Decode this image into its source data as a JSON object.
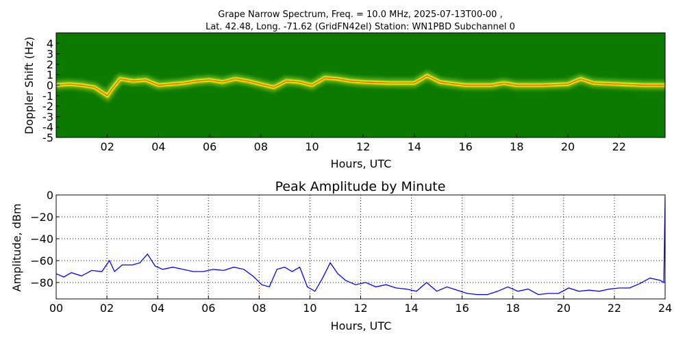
{
  "figure": {
    "title_line1": "Grape Narrow Spectrum, Freq. = 10.0 MHz, 2025-07-13T00-00 ,",
    "title_line2": "Lat.  42.48, Long. -71.62 (GridFN42el) Station: WN1PBD Subchannel 0"
  },
  "chart_data": [
    {
      "type": "heatmap",
      "title": "",
      "xlabel": "Hours, UTC",
      "ylabel": "Doppler Shift (Hz)",
      "xlim": [
        0,
        23.8
      ],
      "ylim": [
        -5,
        5
      ],
      "xticks": [
        2,
        4,
        6,
        8,
        10,
        12,
        14,
        16,
        18,
        20,
        22
      ],
      "xtick_labels": [
        "02",
        "04",
        "06",
        "08",
        "10",
        "12",
        "14",
        "16",
        "18",
        "20",
        "22"
      ],
      "yticks": [
        4,
        3,
        2,
        1,
        0,
        -1,
        -2,
        -3,
        -4,
        -5
      ],
      "ytick_labels": [
        "4",
        "3",
        "2",
        "1",
        "0",
        "-1",
        "-2",
        "-3",
        "-4",
        "-5"
      ],
      "colormap": [
        "#006400",
        "#2e7d0a",
        "#9acd32",
        "#ffff00",
        "#ff3000"
      ],
      "background_color": "#0a7a00",
      "carrier_trace": {
        "hours": [
          0,
          0.5,
          1.0,
          1.5,
          2.0,
          2.2,
          2.5,
          3.0,
          3.5,
          4.0,
          4.5,
          5.0,
          5.5,
          6.0,
          6.5,
          7.0,
          7.5,
          8.0,
          8.5,
          9.0,
          9.5,
          10.0,
          10.5,
          11.0,
          11.5,
          12.0,
          13.0,
          14.0,
          14.5,
          15.0,
          16.0,
          17.0,
          17.5,
          18.0,
          19.0,
          20.0,
          20.5,
          21.0,
          22.0,
          23.0,
          23.8
        ],
        "doppler_hz": [
          0,
          0.1,
          0.0,
          -0.2,
          -1.0,
          -0.3,
          0.6,
          0.4,
          0.5,
          0.0,
          0.1,
          0.2,
          0.4,
          0.5,
          0.3,
          0.6,
          0.4,
          0.1,
          -0.2,
          0.4,
          0.3,
          0.0,
          0.7,
          0.6,
          0.4,
          0.3,
          0.2,
          0.2,
          0.9,
          0.3,
          0.0,
          0.0,
          0.2,
          0.0,
          0.0,
          0.1,
          0.6,
          0.2,
          0.1,
          0.0,
          0.0
        ]
      }
    },
    {
      "type": "line",
      "title": "Peak Amplitude by Minute",
      "xlabel": "Hours, UTC",
      "ylabel": "Amplitude, dBm",
      "xlim": [
        0,
        24
      ],
      "ylim": [
        -95,
        0
      ],
      "grid": true,
      "xticks": [
        0,
        2,
        4,
        6,
        8,
        10,
        12,
        14,
        16,
        18,
        20,
        22,
        24
      ],
      "xtick_labels": [
        "00",
        "02",
        "04",
        "06",
        "08",
        "10",
        "12",
        "14",
        "16",
        "18",
        "20",
        "22",
        "24"
      ],
      "yticks": [
        0,
        -20,
        -40,
        -60,
        -80
      ],
      "ytick_labels": [
        "0",
        "−20",
        "−40",
        "−60",
        "−80"
      ],
      "line_color": "#0000ff",
      "series": [
        {
          "x": [
            0,
            0.3,
            0.6,
            1.0,
            1.4,
            1.8,
            2.1,
            2.3,
            2.6,
            3.0,
            3.3,
            3.6,
            3.9,
            4.2,
            4.6,
            5.0,
            5.4,
            5.8,
            6.2,
            6.6,
            7.0,
            7.4,
            7.8,
            8.1,
            8.4,
            8.7,
            9.0,
            9.3,
            9.6,
            9.9,
            10.2,
            10.5,
            10.8,
            11.1,
            11.4,
            11.8,
            12.2,
            12.6,
            13.0,
            13.4,
            13.8,
            14.2,
            14.6,
            15.0,
            15.4,
            15.8,
            16.2,
            16.6,
            17.0,
            17.4,
            17.8,
            18.2,
            18.6,
            19.0,
            19.4,
            19.8,
            20.2,
            20.6,
            21.0,
            21.4,
            21.8,
            22.2,
            22.6,
            23.0,
            23.4,
            23.8,
            23.95,
            24.0
          ],
          "y": [
            -72,
            -75,
            -71,
            -74,
            -69,
            -70,
            -60,
            -70,
            -64,
            -64,
            -62,
            -54,
            -65,
            -68,
            -66,
            -68,
            -70,
            -70,
            -68,
            -69,
            -66,
            -68,
            -75,
            -82,
            -84,
            -68,
            -66,
            -70,
            -66,
            -84,
            -88,
            -76,
            -62,
            -72,
            -78,
            -82,
            -80,
            -84,
            -82,
            -85,
            -86,
            -88,
            -80,
            -88,
            -84,
            -87,
            -90,
            -91,
            -91,
            -88,
            -84,
            -88,
            -86,
            -91,
            -90,
            -90,
            -85,
            -88,
            -87,
            -88,
            -86,
            -85,
            -85,
            -81,
            -76,
            -78,
            -80,
            -2
          ]
        }
      ]
    }
  ]
}
